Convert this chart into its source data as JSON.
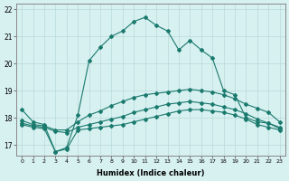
{
  "xlabel": "Humidex (Indice chaleur)",
  "x": [
    0,
    1,
    2,
    3,
    4,
    5,
    6,
    7,
    8,
    9,
    10,
    11,
    12,
    13,
    14,
    15,
    16,
    17,
    18,
    19,
    20,
    21,
    22,
    23
  ],
  "line1": [
    18.3,
    17.85,
    17.75,
    16.75,
    16.9,
    18.1,
    20.1,
    20.6,
    21.0,
    21.2,
    21.55,
    21.7,
    21.4,
    21.2,
    20.5,
    20.85,
    20.5,
    20.2,
    19.0,
    18.85,
    18.0,
    17.85,
    17.8,
    17.6
  ],
  "line2": [
    17.9,
    17.75,
    17.7,
    17.55,
    17.55,
    17.85,
    18.1,
    18.25,
    18.45,
    18.6,
    18.75,
    18.85,
    18.9,
    18.95,
    19.0,
    19.05,
    19.0,
    18.95,
    18.85,
    18.7,
    18.5,
    18.35,
    18.2,
    17.85
  ],
  "line3": [
    17.8,
    17.7,
    17.65,
    17.5,
    17.45,
    17.65,
    17.75,
    17.85,
    17.95,
    18.05,
    18.2,
    18.3,
    18.4,
    18.5,
    18.55,
    18.6,
    18.55,
    18.5,
    18.4,
    18.3,
    18.15,
    17.95,
    17.8,
    17.65
  ],
  "line4": [
    17.75,
    17.65,
    17.6,
    16.75,
    16.85,
    17.55,
    17.6,
    17.65,
    17.7,
    17.75,
    17.85,
    17.95,
    18.05,
    18.15,
    18.25,
    18.3,
    18.3,
    18.25,
    18.2,
    18.1,
    17.95,
    17.75,
    17.65,
    17.55
  ],
  "line_color": "#1a7a6e",
  "bg_color": "#d7f0f0",
  "grid_color": "#b8dada",
  "ylim": [
    16.6,
    22.2
  ],
  "yticks": [
    17,
    18,
    19,
    20,
    21,
    22
  ],
  "xlim": [
    -0.5,
    23.5
  ],
  "figsize": [
    3.2,
    2.0
  ],
  "dpi": 100
}
